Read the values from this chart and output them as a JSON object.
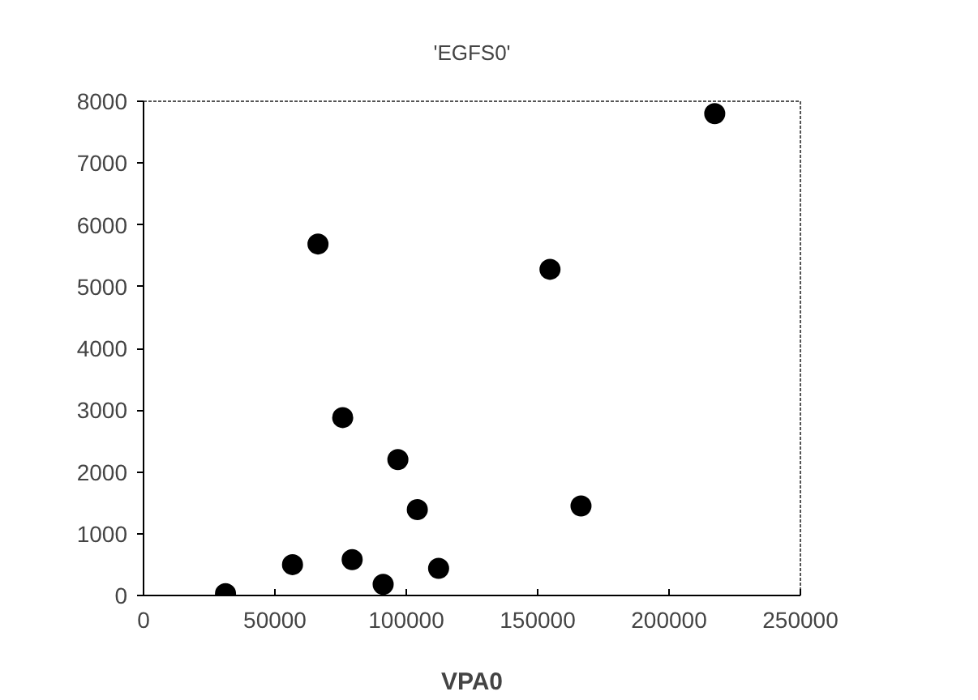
{
  "chart_data": {
    "type": "scatter",
    "title": "'EGFS0'",
    "xlabel": "VPA0",
    "x": [
      31200,
      56700,
      66400,
      75800,
      79400,
      91200,
      96800,
      104200,
      112300,
      154700,
      166500,
      217400
    ],
    "values": [
      30,
      500,
      5690,
      2880,
      580,
      180,
      2200,
      1390,
      440,
      5280,
      1450,
      7800
    ],
    "color": "#000000",
    "marker": "circle",
    "xlim": [
      0,
      250000
    ],
    "xticks": [
      0,
      50000,
      100000,
      150000,
      200000,
      250000
    ],
    "ylim": [
      0,
      8000
    ],
    "yticks": [
      0,
      1000,
      2000,
      3000,
      4000,
      5000,
      6000,
      7000,
      8000
    ],
    "grid": false
  }
}
